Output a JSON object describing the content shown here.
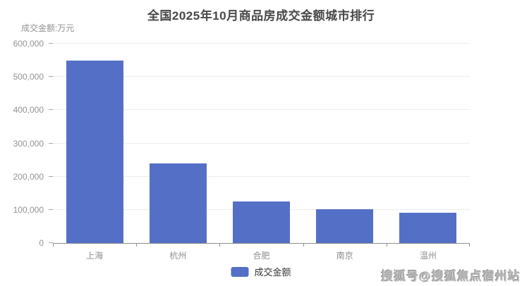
{
  "chart_data": {
    "type": "bar",
    "title": "全国2025年10月商品房成交金额城市排行",
    "categories": [
      "上海",
      "杭州",
      "合肥",
      "南京",
      "温州"
    ],
    "series": [
      {
        "name": "成交金额",
        "color": "#5470c6",
        "values": [
          550000,
          240000,
          125000,
          102000,
          91000
        ]
      }
    ],
    "xlabel": "",
    "ylabel": "成交金额:万元",
    "ylim": [
      0,
      600000
    ],
    "ytick_interval": 100000,
    "ytick_labels": [
      "0",
      "100,000",
      "200,000",
      "300,000",
      "400,000",
      "500,000",
      "600,000"
    ],
    "grid": true,
    "legend_position": "bottom"
  },
  "watermark": {
    "text": "搜狐号@搜狐焦点宿州站"
  },
  "colors": {
    "bar_accent": "#5470c6",
    "axis_line": "#8f8f8f",
    "grid_line": "#ededed",
    "tick_label": "#929292",
    "title_text": "#474747",
    "legend_text": "#333333",
    "watermark_text": "#bcbcbc"
  }
}
